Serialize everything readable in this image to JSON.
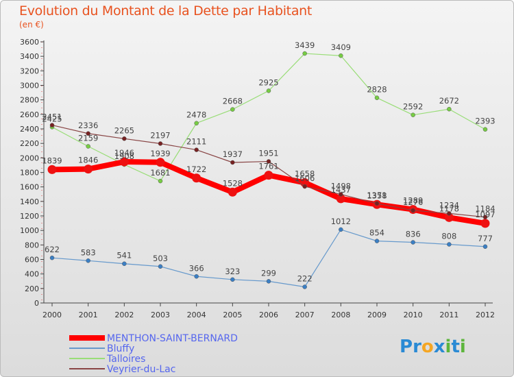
{
  "title": "Evolution du Montant de la Dette par Habitant",
  "subtitle": "(en €)",
  "logo": {
    "text": "Proxiti",
    "letters": [
      "P",
      "r",
      "o",
      "x",
      "i",
      "t",
      "i"
    ],
    "colors": [
      "#2a8ad4",
      "#2a8ad4",
      "#f5a623",
      "#2a8ad4",
      "#5db53c",
      "#2a8ad4",
      "#5db53c"
    ]
  },
  "chart_data": {
    "type": "line",
    "x": [
      "2000",
      "2001",
      "2002",
      "2003",
      "2004",
      "2005",
      "2006",
      "2007",
      "2008",
      "2009",
      "2010",
      "2011",
      "2012"
    ],
    "ylim": [
      0,
      3600
    ],
    "yticks": [
      0,
      200,
      400,
      600,
      800,
      1000,
      1200,
      1400,
      1600,
      1800,
      2000,
      2200,
      2400,
      2600,
      2800,
      3000,
      3200,
      3400,
      3600
    ],
    "grid": false,
    "legend": "bottom-left",
    "series": [
      {
        "name": "MENTHON-SAINT-BERNARD",
        "color": "#ff0000",
        "marker": "#ee1111",
        "width": 8,
        "values": [
          1839,
          1846,
          1946,
          1939,
          1722,
          1528,
          1761,
          1658,
          1437,
          1358,
          1289,
          1178,
          1097
        ]
      },
      {
        "name": "Bluffy",
        "color": "#6699cc",
        "marker": "#3b7fc4",
        "width": 1.2,
        "values": [
          622,
          583,
          541,
          503,
          366,
          323,
          299,
          222,
          1012,
          854,
          836,
          808,
          777
        ]
      },
      {
        "name": "Talloires",
        "color": "#99dd77",
        "marker": "#77cc44",
        "width": 1.2,
        "values": [
          2425,
          2159,
          1908,
          1681,
          2478,
          2668,
          2925,
          3439,
          3409,
          2828,
          2592,
          2672,
          2393
        ]
      },
      {
        "name": "Veyrier-du-Lac",
        "color": "#884444",
        "marker": "#772222",
        "width": 1.2,
        "values": [
          2451,
          2336,
          2265,
          2197,
          2111,
          1937,
          1951,
          1606,
          1498,
          1371,
          1276,
          1234,
          1184
        ]
      }
    ]
  }
}
